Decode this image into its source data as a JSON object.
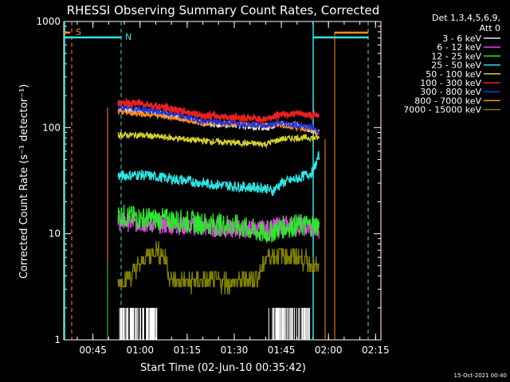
{
  "chart_data": {
    "type": "line",
    "title": "RHESSI Observing Summary Count Rates, Corrected",
    "xlabel": "Start Time (02-Jun-10 00:35:42)",
    "ylabel": "Corrected Count Rate (s⁻¹ detector⁻¹)",
    "y_scale": "log",
    "ylim": [
      1,
      1000
    ],
    "xlim": [
      "00:35:42",
      "02:16:42"
    ],
    "x_ticks": [
      "00:45",
      "01:00",
      "01:15",
      "01:30",
      "01:45",
      "02:00",
      "02:15"
    ],
    "y_ticks": [
      "1",
      "10",
      "100",
      "1000"
    ],
    "legend_header": [
      "Det 1,3,4,5,6,9,",
      "Att 0"
    ],
    "legend_position": "right",
    "timestamp": "15-Oct-2021 00:40",
    "annotations": [
      {
        "label": "S",
        "color": "#ff8c1a"
      },
      {
        "label": "N",
        "color": "#2ee6e6"
      }
    ],
    "series": [
      {
        "name": "3 - 6 keV",
        "color": "#e8e8e8",
        "x": [
          "00:53:00",
          "01:00:00",
          "01:10:00",
          "01:20:00",
          "01:30:00",
          "01:40:00",
          "01:45:00",
          "01:50:00",
          "01:55:00",
          "01:57:00"
        ],
        "y": [
          150,
          145,
          130,
          110,
          105,
          100,
          110,
          105,
          95,
          90
        ]
      },
      {
        "name": "6 - 12 keV",
        "color": "#e040e0",
        "x": [
          "00:53:00",
          "01:00:00",
          "01:10:00",
          "01:20:00",
          "01:30:00",
          "01:40:00",
          "01:45:00",
          "01:50:00",
          "01:55:00",
          "01:57:00"
        ],
        "y": [
          13,
          12.5,
          12,
          11.5,
          11,
          11,
          12,
          12,
          11,
          11
        ]
      },
      {
        "name": "12 - 25 keV",
        "color": "#2ee62e",
        "x": [
          "00:53:00",
          "01:00:00",
          "01:10:00",
          "01:20:00",
          "01:30:00",
          "01:40:00",
          "01:45:00",
          "01:50:00",
          "01:55:00",
          "01:57:00"
        ],
        "y": [
          15,
          14,
          13.5,
          12.5,
          12,
          10,
          11.5,
          12,
          12,
          12
        ]
      },
      {
        "name": "25 - 50 keV",
        "color": "#2ee6e6",
        "x": [
          "00:53:00",
          "01:00:00",
          "01:10:00",
          "01:20:00",
          "01:30:00",
          "01:40:00",
          "01:42:00",
          "01:45:00",
          "01:50:00",
          "01:55:00",
          "01:57:00"
        ],
        "y": [
          35,
          36,
          33,
          30,
          28,
          27,
          25,
          30,
          33,
          38,
          55
        ]
      },
      {
        "name": "50 - 100 keV",
        "color": "#d9d32b",
        "x": [
          "00:53:00",
          "01:00:00",
          "01:10:00",
          "01:20:00",
          "01:30:00",
          "01:40:00",
          "01:45:00",
          "01:50:00",
          "01:55:00",
          "01:57:00"
        ],
        "y": [
          85,
          85,
          80,
          75,
          72,
          70,
          78,
          80,
          80,
          80
        ]
      },
      {
        "name": "100 - 300 keV",
        "color": "#e82020",
        "x": [
          "00:53:00",
          "01:00:00",
          "01:10:00",
          "01:20:00",
          "01:30:00",
          "01:40:00",
          "01:45:00",
          "01:50:00",
          "01:55:00",
          "01:57:00"
        ],
        "y": [
          170,
          170,
          150,
          130,
          125,
          120,
          135,
          135,
          130,
          130
        ]
      },
      {
        "name": "300 - 800 keV",
        "color": "#2233dd",
        "x": [
          "00:53:00",
          "01:00:00",
          "01:10:00",
          "01:20:00",
          "01:30:00",
          "01:40:00",
          "01:45:00",
          "01:50:00",
          "01:55:00",
          "01:57:00"
        ],
        "y": [
          155,
          150,
          135,
          115,
          110,
          105,
          110,
          105,
          100,
          90
        ]
      },
      {
        "name": "800 - 7000 keV",
        "color": "#ff8c1a",
        "x": [
          "00:53:00",
          "01:00:00",
          "01:10:00",
          "01:20:00",
          "01:30:00",
          "01:40:00",
          "01:45:00",
          "01:50:00",
          "01:55:00",
          "01:57:00"
        ],
        "y": [
          140,
          135,
          125,
          110,
          108,
          105,
          105,
          100,
          95,
          90
        ]
      },
      {
        "name": "7000 - 15000 keV",
        "color": "#808000",
        "x": [
          "00:53:00",
          "00:57:00",
          "01:02:00",
          "01:05:00",
          "01:08:00",
          "01:10:00",
          "01:20:00",
          "01:30:00",
          "01:38:00",
          "01:40:00",
          "01:45:00",
          "01:50:00",
          "01:55:00",
          "01:57:00"
        ],
        "y": [
          3.5,
          4,
          6,
          7,
          6,
          3.5,
          3.5,
          3.5,
          4,
          6,
          6.5,
          6,
          5,
          4.5
        ]
      }
    ]
  }
}
